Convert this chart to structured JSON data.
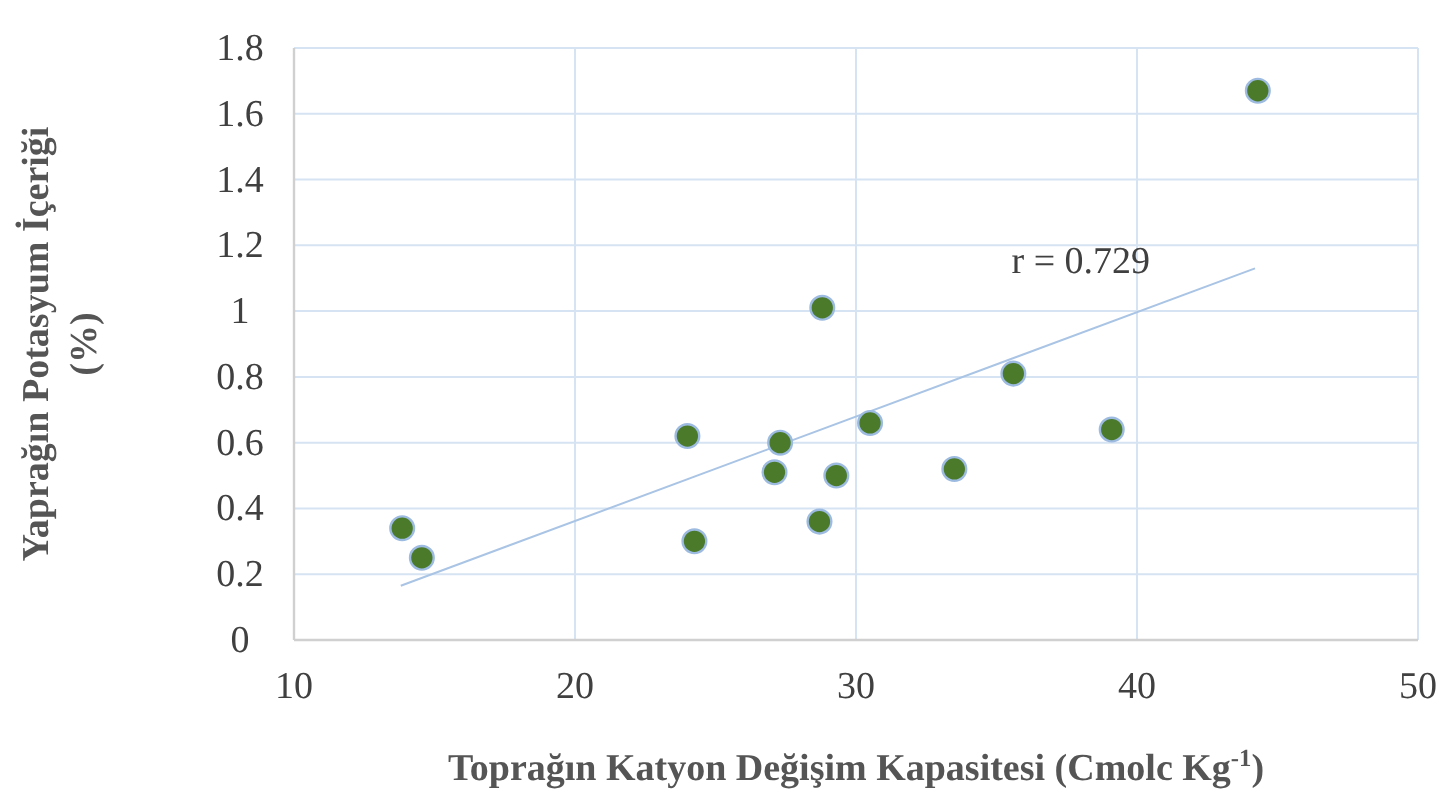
{
  "chart_data": {
    "type": "scatter",
    "xlabel": "Toprağın Katyon Değişim Kapasitesi (Cmolc Kg$^{-1}$)",
    "ylabel": "Yaprağın Potasyum İçeriği\n(%)",
    "xlim": [
      10,
      50
    ],
    "xticks": [
      10,
      20,
      30,
      40,
      50
    ],
    "ylim": [
      0,
      1.8
    ],
    "yticks": [
      0,
      0.2,
      0.4,
      0.6,
      0.8,
      1,
      1.2,
      1.4,
      1.6,
      1.8
    ],
    "grid": true,
    "marker": "circle",
    "series": [
      {
        "color": "#4a7a2a",
        "x": [
          13.85,
          14.55,
          24.0,
          24.25,
          27.1,
          27.3,
          28.7,
          28.8,
          29.3,
          30.5,
          33.5,
          35.6,
          39.1,
          44.3
        ],
        "values": [
          0.34,
          0.25,
          0.62,
          0.3,
          0.51,
          0.6,
          0.36,
          1.01,
          0.5,
          0.66,
          0.52,
          0.81,
          0.64,
          1.67
        ]
      },
      {
        "type": "line",
        "marker": "none",
        "color": "#a9c4e4",
        "x": [
          13.8,
          44.2
        ],
        "values": [
          0.165,
          1.13
        ]
      }
    ],
    "annotations": [
      "r = 0.729"
    ]
  }
}
